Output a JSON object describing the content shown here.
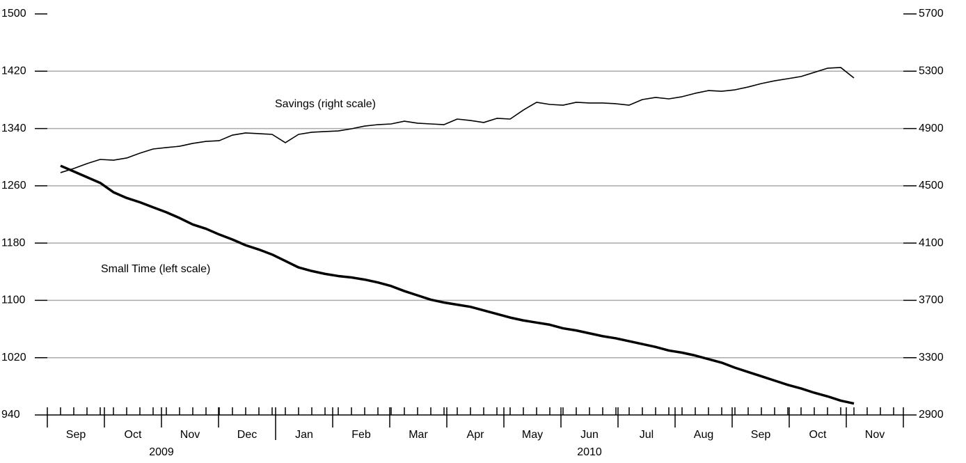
{
  "chart_data": {
    "type": "line",
    "categories": [
      null,
      null,
      null,
      null,
      null,
      null,
      null,
      null,
      null,
      null,
      null,
      null,
      null,
      null,
      null,
      null,
      null,
      null,
      null,
      null,
      null,
      null,
      null,
      null,
      null,
      null,
      null,
      null,
      null,
      null,
      null,
      null,
      null,
      null,
      null,
      null,
      null,
      null,
      null,
      null,
      null,
      null,
      null,
      null,
      null,
      null,
      null,
      null,
      null,
      null,
      null,
      null,
      null,
      null,
      null,
      null,
      null,
      null,
      null,
      null,
      null,
      null,
      null,
      null
    ],
    "months": [
      "Sep",
      "Oct",
      "Nov",
      "Dec",
      "Jan",
      "Feb",
      "Mar",
      "Apr",
      "May",
      "Jun",
      "Jul",
      "Aug",
      "Sep",
      "Oct",
      "Nov"
    ],
    "years": [
      {
        "label": "2009",
        "first_month": 0
      },
      {
        "label": "2010",
        "first_month": 4
      }
    ],
    "series": [
      {
        "name": "Small Time (left scale)",
        "color": "#000000",
        "axis": "y",
        "values": [
          1288,
          1280,
          1272,
          1264,
          1251,
          1243,
          1237,
          1230,
          1223,
          1215,
          1206,
          1200,
          1192,
          1185,
          1177,
          1171,
          1164,
          1155,
          1146,
          1141,
          1137,
          1134,
          1132,
          1129,
          1125,
          1120,
          1113,
          1107,
          1101,
          1097,
          1094,
          1091,
          1086,
          1081,
          1076,
          1072,
          1069,
          1066,
          1061,
          1058,
          1054,
          1050,
          1047,
          1043,
          1039,
          1035,
          1030,
          1027,
          1023,
          1018,
          1013,
          1006,
          1000,
          994,
          988,
          982,
          977,
          971,
          966,
          960,
          956,
          null,
          null,
          null
        ]
      },
      {
        "name": "Savings (right scale)",
        "color": "#000000",
        "axis": "y2",
        "values": [
          4592,
          4621,
          4655,
          4684,
          4679,
          4694,
          4728,
          4757,
          4767,
          4776,
          4796,
          4810,
          4815,
          4854,
          4869,
          4864,
          4859,
          4801,
          4859,
          4874,
          4879,
          4883,
          4898,
          4917,
          4927,
          4932,
          4951,
          4937,
          4932,
          4927,
          4966,
          4956,
          4942,
          4971,
          4966,
          5029,
          5083,
          5068,
          5063,
          5083,
          5078,
          5078,
          5073,
          5063,
          5102,
          5117,
          5107,
          5122,
          5146,
          5165,
          5160,
          5170,
          5190,
          5214,
          5233,
          5248,
          5263,
          5292,
          5321,
          5326,
          5253,
          null,
          null,
          null
        ]
      }
    ],
    "ylim": [
      940,
      1500
    ],
    "yticks": [
      940,
      1020,
      1100,
      1180,
      1260,
      1340,
      1420,
      1500
    ],
    "y2lim": [
      2900,
      5700
    ],
    "y2ticks": [
      2900,
      3300,
      3700,
      4100,
      4500,
      4900,
      5300,
      5700
    ],
    "grid": true
  }
}
